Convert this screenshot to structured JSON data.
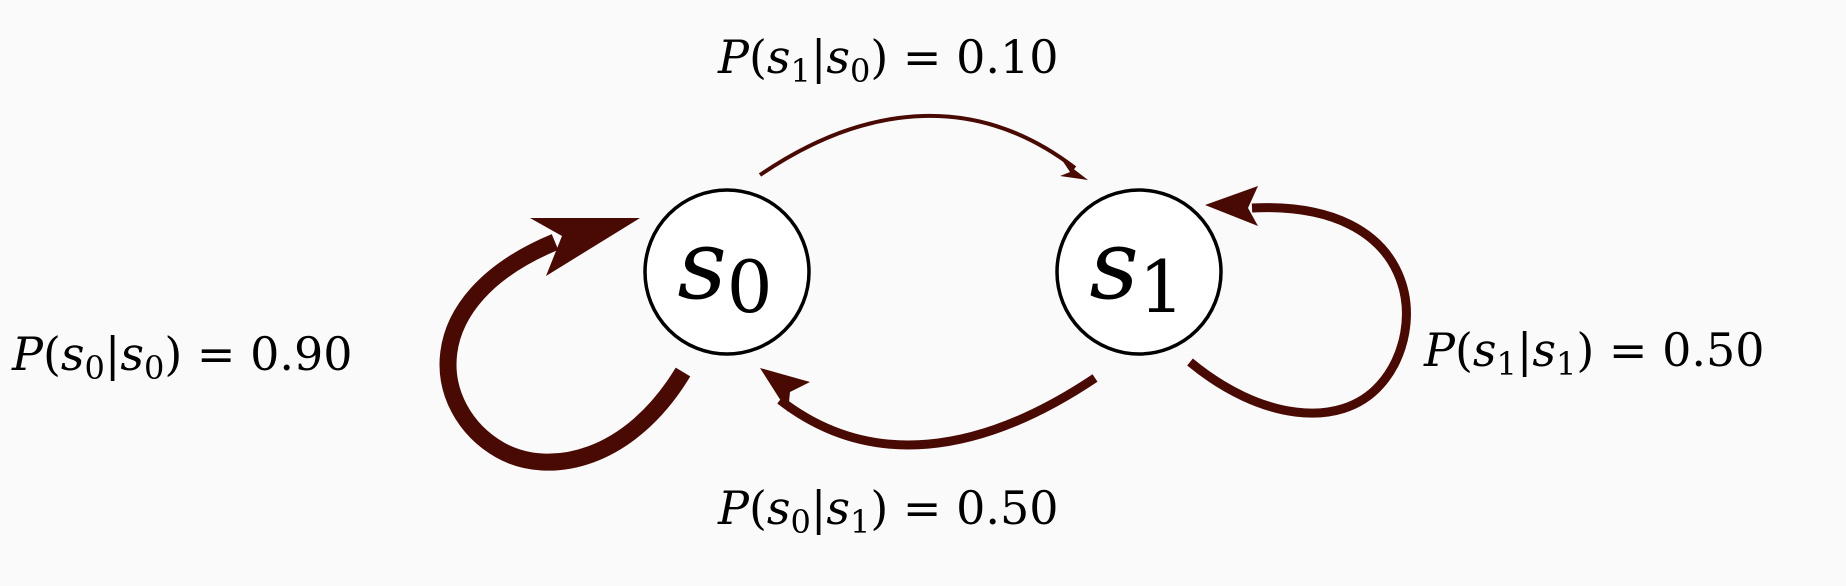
{
  "colors": {
    "background": "#fafafa",
    "edge": "#4a0a04",
    "node_fill": "#ffffff",
    "node_stroke": "#000000"
  },
  "nodes": [
    {
      "id": "s0",
      "letter": "s",
      "subscript": "0"
    },
    {
      "id": "s1",
      "letter": "s",
      "subscript": "1"
    }
  ],
  "edges": [
    {
      "id": "s0-to-s1",
      "label": {
        "var": "P",
        "a": "s",
        "a_sub": "1",
        "b": "s",
        "b_sub": "0",
        "value": "0.10"
      }
    },
    {
      "id": "s0-to-s0",
      "label": {
        "var": "P",
        "a": "s",
        "a_sub": "0",
        "b": "s",
        "b_sub": "0",
        "value": "0.90"
      }
    },
    {
      "id": "s1-to-s1",
      "label": {
        "var": "P",
        "a": "s",
        "a_sub": "1",
        "b": "s",
        "b_sub": "1",
        "value": "0.50"
      }
    },
    {
      "id": "s1-to-s0",
      "label": {
        "var": "P",
        "a": "s",
        "a_sub": "0",
        "b": "s",
        "b_sub": "1",
        "value": "0.50"
      }
    }
  ]
}
